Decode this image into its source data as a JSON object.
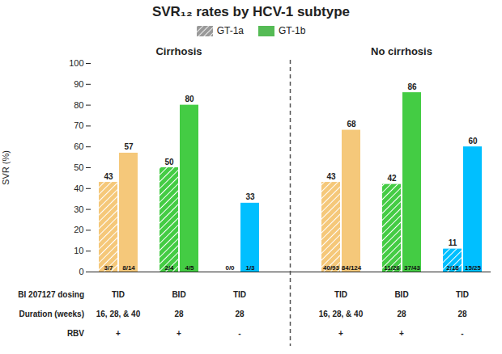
{
  "chart_data": {
    "type": "bar",
    "title": "SVR₁₂ rates by HCV-1 subtype",
    "ylabel": "SVR (%)",
    "categories": [
      null,
      null,
      null,
      null,
      null,
      null
    ],
    "sections": [
      "Cirrhosis",
      "Cirrhosis",
      "Cirrhosis",
      "No cirrhosis",
      "No cirrhosis",
      "No cirrhosis"
    ],
    "series": [
      {
        "name": "GT-1a",
        "color": "#999999",
        "colors": [
          "#F5C87A",
          "#44CC44",
          "#00BFFF",
          "#F5C87A",
          "#44CC44",
          "#00BFFF"
        ],
        "values": [
          43,
          50,
          0,
          43,
          42,
          11
        ],
        "value_labels": [
          "43",
          "50",
          null,
          "43",
          "42",
          "11"
        ],
        "fractions": [
          "3/7",
          "2/4",
          "0/0",
          "40/93",
          "11/26",
          "2/18"
        ]
      },
      {
        "name": "GT-1b",
        "color": "#55BB55",
        "colors": [
          "#F5C87A",
          "#44CC44",
          "#00BFFF",
          "#F5C87A",
          "#44CC44",
          "#00BFFF"
        ],
        "values": [
          57,
          80,
          33,
          68,
          86,
          60
        ],
        "fractions": [
          "8/14",
          "4/5",
          "1/3",
          "84/124",
          "37/43",
          "15/25"
        ]
      }
    ],
    "ylim": [
      0,
      100
    ],
    "yticks": [
      0,
      10,
      20,
      30,
      40,
      50,
      60,
      70,
      80,
      90,
      100
    ],
    "data_labels": true,
    "legend": "top",
    "table": {
      "rows": [
        {
          "label": "BI 207127 dosing",
          "values": [
            "TID",
            "BID",
            "TID",
            "TID",
            "BID",
            "TID"
          ]
        },
        {
          "label": "Duration (weeks)",
          "values": [
            "16, 28, & 40",
            "28",
            "28",
            "16, 28, & 40",
            "28",
            "28"
          ]
        },
        {
          "label": "RBV",
          "values": [
            "+",
            "+",
            "-",
            "+",
            "+",
            "-"
          ]
        }
      ]
    }
  }
}
